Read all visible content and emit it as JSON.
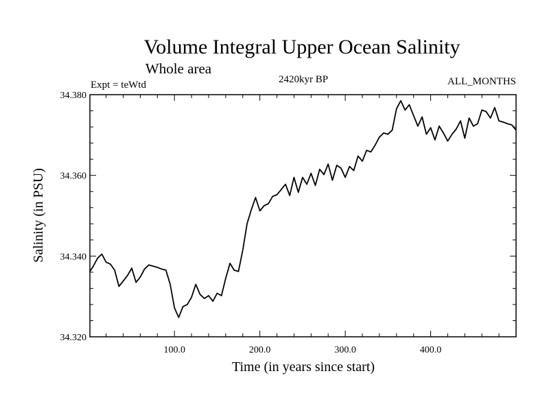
{
  "chart_data": {
    "type": "line",
    "title": "Volume Integral Upper Ocean Salinity",
    "subtitle": "Whole area",
    "experiment_label": "Expt = teWtd",
    "period_label": "2420kyr BP",
    "months_label": "ALL_MONTHS",
    "xlabel": "Time (in years since start)",
    "ylabel": "Salinity (in PSU)",
    "xlim": [
      1,
      500
    ],
    "ylim": [
      34.32,
      34.38
    ],
    "x_ticks": [
      {
        "value": 100,
        "label": "100.0"
      },
      {
        "value": 200,
        "label": "200.0"
      },
      {
        "value": 300,
        "label": "300.0"
      },
      {
        "value": 400,
        "label": "400.0"
      }
    ],
    "y_ticks": [
      {
        "value": 34.32,
        "label": "34.320"
      },
      {
        "value": 34.34,
        "label": "34.340"
      },
      {
        "value": 34.36,
        "label": "34.360"
      },
      {
        "value": 34.38,
        "label": "34.380"
      }
    ],
    "grid": false,
    "series": [
      {
        "name": "salinity",
        "x": [
          1,
          5,
          10,
          15,
          20,
          25,
          30,
          35,
          40,
          45,
          50,
          55,
          60,
          65,
          70,
          75,
          80,
          85,
          90,
          95,
          100,
          102,
          105,
          110,
          115,
          120,
          125,
          130,
          135,
          140,
          145,
          150,
          155,
          160,
          165,
          170,
          175,
          180,
          185,
          190,
          195,
          200,
          205,
          210,
          215,
          220,
          225,
          230,
          235,
          240,
          245,
          250,
          255,
          260,
          265,
          270,
          275,
          280,
          285,
          290,
          295,
          300,
          305,
          310,
          315,
          320,
          325,
          330,
          335,
          340,
          345,
          350,
          355,
          360,
          365,
          370,
          375,
          380,
          385,
          390,
          395,
          400,
          405,
          410,
          415,
          420,
          425,
          430,
          435,
          440,
          445,
          450,
          455,
          460,
          465,
          470,
          475,
          480,
          485,
          490,
          495,
          500
        ],
        "values": [
          34.3362,
          34.3375,
          34.3395,
          34.3405,
          34.3385,
          34.338,
          34.3365,
          34.3325,
          34.3338,
          34.3352,
          34.337,
          34.3335,
          34.3348,
          34.3368,
          34.3378,
          34.3375,
          34.3372,
          34.3368,
          34.3365,
          34.333,
          34.3272,
          34.3262,
          34.3248,
          34.3275,
          34.328,
          34.3298,
          34.333,
          34.3305,
          34.3295,
          34.3302,
          34.3288,
          34.3308,
          34.3302,
          34.3345,
          34.3382,
          34.3365,
          34.3362,
          34.3415,
          34.348,
          34.3515,
          34.3545,
          34.3512,
          34.3525,
          34.353,
          34.3548,
          34.3552,
          34.3565,
          34.3578,
          34.355,
          34.3595,
          34.3558,
          34.3595,
          34.3578,
          34.3605,
          34.3575,
          34.3615,
          34.3602,
          34.3628,
          34.3588,
          34.3625,
          34.3618,
          34.3595,
          34.3622,
          34.3612,
          34.3648,
          34.3635,
          34.3662,
          34.3658,
          34.3675,
          34.3695,
          34.3705,
          34.3702,
          34.3712,
          34.3765,
          34.3785,
          34.3762,
          34.3775,
          34.3748,
          34.3722,
          34.3745,
          34.3702,
          34.3718,
          34.3688,
          34.3722,
          34.3705,
          34.3685,
          34.3702,
          34.3715,
          34.3735,
          34.3692,
          34.3742,
          34.3722,
          34.3728,
          34.3762,
          34.3758,
          34.3742,
          34.3768,
          34.3735,
          34.3732,
          34.3728,
          34.3725,
          34.3712
        ]
      }
    ]
  }
}
